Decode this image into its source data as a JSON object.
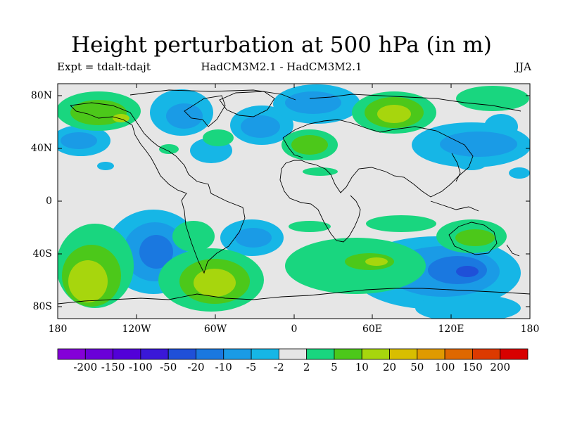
{
  "title": "Height perturbation at 500 hPa (in m)",
  "subtitle_left": "Expt = tdalt-tdajt",
  "subtitle_center": "HadCM3M2.1 - HadCM3M2.1",
  "subtitle_right": "JJA",
  "lat_labels": [
    "80N",
    "40N",
    "0",
    "40S",
    "80S"
  ],
  "lon_labels": [
    "180",
    "120W",
    "60W",
    "0",
    "60E",
    "120E",
    "180"
  ],
  "colorbar": {
    "levels": [
      "-200",
      "-150",
      "-100",
      "-50",
      "-20",
      "-10",
      "-5",
      "-2",
      "2",
      "5",
      "10",
      "20",
      "50",
      "100",
      "150",
      "200"
    ],
    "colors": [
      "#8400d8",
      "#6a00d8",
      "#5200d8",
      "#3a18d8",
      "#1f50d8",
      "#1a78e0",
      "#1a9be6",
      "#16b6e6",
      "#e6e6e6",
      "#19d67f",
      "#4cc81a",
      "#a7d60d",
      "#d8be00",
      "#e09a00",
      "#de6800",
      "#dc3a00",
      "#d80000"
    ]
  },
  "fill_colors": {
    "background": "#e6e6e6",
    "neg_light": "#16b6e6",
    "neg_mid": "#1a9be6",
    "neg_strong": "#1a78e0",
    "neg_max": "#1f50d8",
    "pos_light": "#19d67f",
    "pos_mid": "#4cc81a",
    "pos_strong": "#a7d60d",
    "coast": "#000000"
  }
}
